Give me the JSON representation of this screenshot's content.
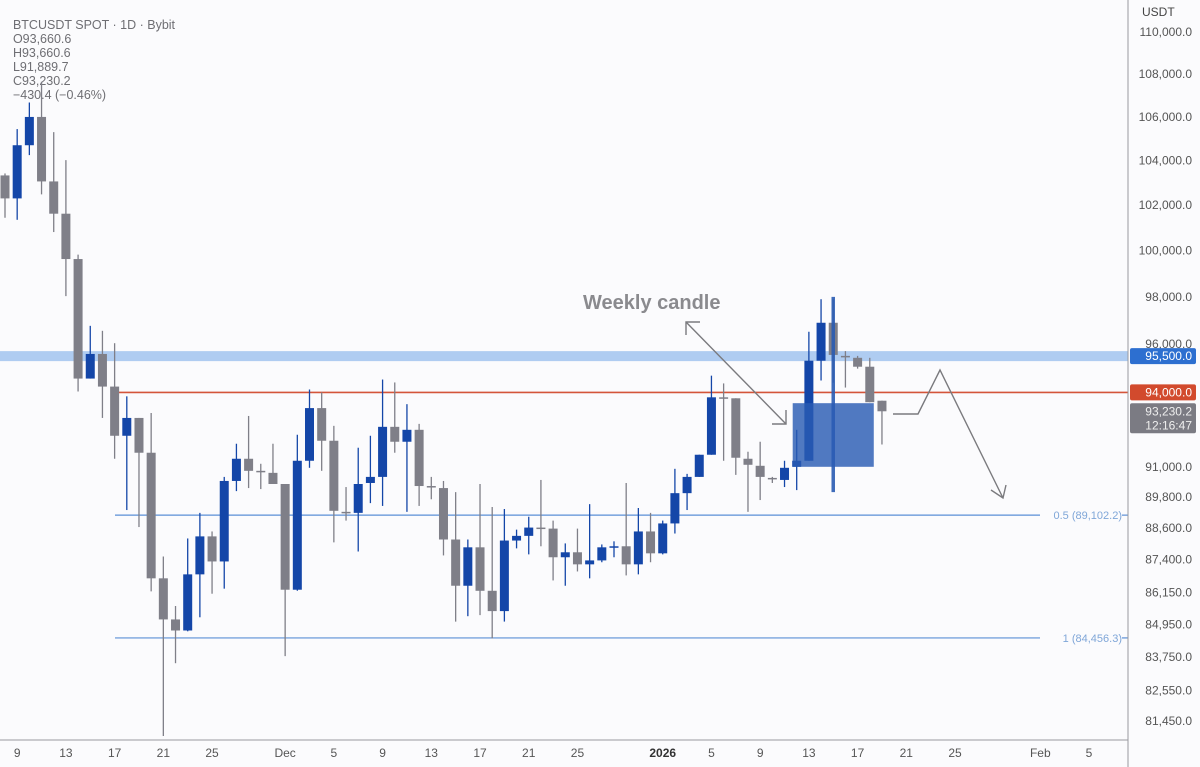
{
  "header": {
    "symbol": "BTCUSDT SPOT · 1D · Bybit",
    "open": "O93,660.6",
    "high": "H93,660.6",
    "low": "L91,889.7",
    "close": "C93,230.2",
    "change": "−430.4 (−0.46%)"
  },
  "colors": {
    "up": "#1446a8",
    "down": "#7f7f88",
    "band": "#a6c7ef",
    "resistance": "#d4553a",
    "fib": "#5b8fd6",
    "band_badge": "#2d6fd0",
    "resistance_badge": "#d24a2d",
    "price_badge": "#7b7b83",
    "weekly": "#2a5cb3"
  },
  "chart_data": {
    "type": "candlestick",
    "title": "BTCUSDT SPOT · 1D · Bybit",
    "y_axis": {
      "unit": "USDT",
      "scale": "log",
      "range": [
        80900,
        110000
      ],
      "ticks": [
        "110,000.0",
        "108,000.0",
        "106,000.0",
        "104,000.0",
        "102,000.0",
        "100,000.0",
        "98,000.0",
        "96,000.0",
        "91,000.0",
        "89,800.0",
        "88,600.0",
        "87,400.0",
        "86,150.0",
        "84,950.0",
        "83,750.0",
        "82,550.0",
        "81,450.0"
      ]
    },
    "x_axis": {
      "ticks": [
        {
          "label": "9",
          "date": "2025-11-09"
        },
        {
          "label": "13",
          "date": "2025-11-13"
        },
        {
          "label": "17",
          "date": "2025-11-17"
        },
        {
          "label": "21",
          "date": "2025-11-21"
        },
        {
          "label": "25",
          "date": "2025-11-25"
        },
        {
          "label": "Dec",
          "date": "2025-12-01"
        },
        {
          "label": "5",
          "date": "2025-12-05"
        },
        {
          "label": "9",
          "date": "2025-12-09"
        },
        {
          "label": "13",
          "date": "2025-12-13"
        },
        {
          "label": "17",
          "date": "2025-12-17"
        },
        {
          "label": "21",
          "date": "2025-12-21"
        },
        {
          "label": "25",
          "date": "2025-12-25"
        },
        {
          "label": "2026",
          "date": "2026-01-01",
          "bold": true
        },
        {
          "label": "5",
          "date": "2026-01-05"
        },
        {
          "label": "9",
          "date": "2026-01-09"
        },
        {
          "label": "13",
          "date": "2026-01-13"
        },
        {
          "label": "17",
          "date": "2026-01-17"
        },
        {
          "label": "21",
          "date": "2026-01-21"
        },
        {
          "label": "25",
          "date": "2026-01-25"
        },
        {
          "label": "Feb",
          "date": "2026-02-01"
        },
        {
          "label": "5",
          "date": "2026-02-05"
        }
      ]
    },
    "candles": [
      [
        "2025-11-08",
        103330,
        103420,
        101440,
        102300
      ],
      [
        "2025-11-09",
        102300,
        105440,
        101350,
        104700
      ],
      [
        "2025-11-10",
        104700,
        106670,
        104250,
        106000
      ],
      [
        "2025-11-11",
        106000,
        107640,
        102480,
        103060
      ],
      [
        "2025-11-12",
        103060,
        105300,
        100810,
        101620
      ],
      [
        "2025-11-13",
        101620,
        104020,
        98030,
        99630
      ],
      [
        "2025-11-14",
        99630,
        99820,
        94040,
        94570
      ],
      [
        "2025-11-15",
        94570,
        96770,
        94570,
        95590
      ],
      [
        "2025-11-16",
        95590,
        96560,
        92960,
        94240
      ],
      [
        "2025-11-17",
        94240,
        96040,
        91320,
        92240
      ],
      [
        "2025-11-18",
        92240,
        93840,
        89300,
        92960
      ],
      [
        "2025-11-19",
        92960,
        92960,
        88640,
        91560
      ],
      [
        "2025-11-20",
        91560,
        93160,
        86190,
        86680
      ],
      [
        "2025-11-21",
        86680,
        87510,
        80920,
        85140
      ],
      [
        "2025-11-22",
        85140,
        85640,
        83530,
        84730
      ],
      [
        "2025-11-23",
        84730,
        88200,
        84700,
        86830
      ],
      [
        "2025-11-24",
        86830,
        89190,
        85220,
        88280
      ],
      [
        "2025-11-25",
        88280,
        88470,
        86100,
        87320
      ],
      [
        "2025-11-26",
        87320,
        90600,
        86290,
        90440
      ],
      [
        "2025-11-27",
        90440,
        91920,
        90040,
        91320
      ],
      [
        "2025-11-28",
        91320,
        93040,
        90160,
        90840
      ],
      [
        "2025-11-29",
        90840,
        91120,
        90120,
        90800
      ],
      [
        "2025-11-30",
        90760,
        91920,
        90320,
        90320
      ],
      [
        "2025-12-01",
        90320,
        90320,
        83790,
        86250
      ],
      [
        "2025-12-02",
        86250,
        92280,
        86210,
        91240
      ],
      [
        "2025-12-03",
        91240,
        94120,
        90960,
        93360
      ],
      [
        "2025-12-04",
        93360,
        94000,
        90840,
        92040
      ],
      [
        "2025-12-05",
        92040,
        92640,
        88050,
        89270
      ],
      [
        "2025-12-06",
        89230,
        90200,
        88890,
        89200
      ],
      [
        "2025-12-07",
        89190,
        91760,
        87700,
        90320
      ],
      [
        "2025-12-08",
        90360,
        92240,
        89570,
        90600
      ],
      [
        "2025-12-09",
        90600,
        94530,
        89460,
        92600
      ],
      [
        "2025-12-10",
        92600,
        94410,
        91560,
        92000
      ],
      [
        "2025-12-11",
        92000,
        93520,
        89230,
        92480
      ],
      [
        "2025-12-12",
        92480,
        92720,
        89460,
        90240
      ],
      [
        "2025-12-13",
        90240,
        90600,
        89720,
        90200
      ],
      [
        "2025-12-14",
        90160,
        90440,
        87550,
        88160
      ],
      [
        "2025-12-15",
        88160,
        90000,
        85060,
        86400
      ],
      [
        "2025-12-16",
        86400,
        88160,
        85260,
        87860
      ],
      [
        "2025-12-17",
        87860,
        90320,
        85300,
        86210
      ],
      [
        "2025-12-18",
        86210,
        89420,
        84440,
        85450
      ],
      [
        "2025-12-19",
        85450,
        89340,
        85060,
        88120
      ],
      [
        "2025-12-20",
        88120,
        88540,
        87820,
        88300
      ],
      [
        "2025-12-21",
        88300,
        89040,
        87590,
        88620
      ],
      [
        "2025-12-22",
        88620,
        90480,
        87900,
        88580
      ],
      [
        "2025-12-23",
        88580,
        88890,
        86600,
        87480
      ],
      [
        "2025-12-24",
        87480,
        88010,
        86400,
        87670
      ],
      [
        "2025-12-25",
        87670,
        88580,
        86940,
        87210
      ],
      [
        "2025-12-26",
        87210,
        89530,
        86680,
        87360
      ],
      [
        "2025-12-27",
        87360,
        87970,
        87290,
        87860
      ],
      [
        "2025-12-28",
        87860,
        88090,
        87480,
        87900
      ],
      [
        "2025-12-29",
        87900,
        90360,
        86790,
        87210
      ],
      [
        "2025-12-30",
        87210,
        89380,
        86830,
        88470
      ],
      [
        "2025-12-31",
        88470,
        89190,
        87290,
        87630
      ],
      [
        "2026-01-01",
        87630,
        88890,
        87590,
        88780
      ],
      [
        "2026-01-02",
        88780,
        90920,
        88390,
        89960
      ],
      [
        "2026-01-03",
        89960,
        90720,
        89300,
        90600
      ],
      [
        "2026-01-04",
        90600,
        91480,
        90600,
        91480
      ],
      [
        "2026-01-05",
        91480,
        94690,
        91480,
        93800
      ],
      [
        "2026-01-06",
        93800,
        94370,
        91240,
        93760
      ],
      [
        "2026-01-07",
        93760,
        93760,
        90680,
        91360
      ],
      [
        "2026-01-08",
        91320,
        91600,
        89230,
        91080
      ],
      [
        "2026-01-09",
        91040,
        92000,
        89690,
        90600
      ],
      [
        "2026-01-10",
        90560,
        90600,
        90360,
        90520
      ],
      [
        "2026-01-11",
        90480,
        91240,
        90200,
        90960
      ],
      [
        "2026-01-12",
        91000,
        92480,
        90080,
        91240
      ],
      [
        "2026-01-13",
        91240,
        96520,
        91240,
        95310
      ],
      [
        "2026-01-14",
        95310,
        97900,
        94490,
        96900
      ],
      [
        "2026-01-15",
        96900,
        97900,
        94400,
        95550
      ],
      [
        "2026-01-16",
        95510,
        95710,
        94200,
        95470
      ],
      [
        "2026-01-17",
        95430,
        95510,
        94980,
        95060
      ],
      [
        "2026-01-18",
        95060,
        95430,
        93600,
        93600
      ],
      [
        "2026-01-19",
        93660.6,
        93660.6,
        91889.7,
        93230.2
      ]
    ],
    "weekly_candle": {
      "start": "2026-01-12",
      "end": "2026-01-18",
      "open": 91000,
      "high": 98000,
      "low": 90000,
      "close": 93560
    },
    "levels": [
      {
        "name": "band",
        "value": 95500,
        "label": "95,500.0"
      },
      {
        "name": "resistance",
        "value": 94000,
        "label": "94,000.0"
      },
      {
        "name": "fib-0.5",
        "value": 89102.2,
        "label": "0.5 (89,102.2)"
      },
      {
        "name": "fib-1",
        "value": 84456.3,
        "label": "1 (84,456.3)"
      }
    ],
    "last_price": {
      "value": 93230.2,
      "label": "93,230.2",
      "countdown": "12:16:47"
    },
    "annotation": "Weekly candle"
  }
}
